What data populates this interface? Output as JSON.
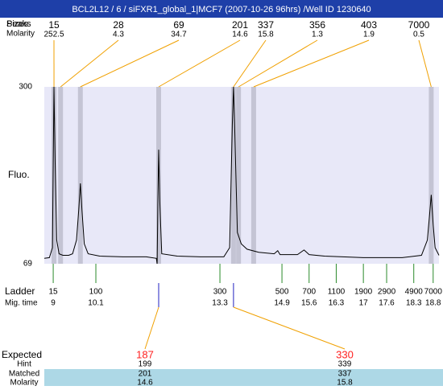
{
  "chart_data": {
    "type": "line",
    "title": "BCL2L12 / 6 / siFXR1_global_1|MCF7 (2007-10-26 96hrs) /Well ID 1230640",
    "ylabel": "Fluo.",
    "peaks_labels": [
      "Peaks",
      "Sizes"
    ],
    "molarity_label": "Molarity",
    "peaks": [
      {
        "size": 15,
        "molarity": 252.5,
        "time": 9.02
      },
      {
        "size": 28,
        "molarity": 4.3,
        "time": 9.19
      },
      {
        "size": 69,
        "molarity": 34.7,
        "time": 9.7
      },
      {
        "size": 201,
        "molarity": 14.6,
        "time": 11.72
      },
      {
        "size": 337,
        "molarity": 15.8,
        "time": 13.65
      },
      {
        "size": 356,
        "molarity": 1.3,
        "time": 13.78
      },
      {
        "size": 403,
        "molarity": 1.9,
        "time": 14.17
      },
      {
        "size": 7000,
        "molarity": 0.5,
        "time": 18.75
      }
    ],
    "x": [
      8.77,
      8.9,
      8.98,
      9.0,
      9.02,
      9.05,
      9.09,
      9.15,
      9.25,
      9.4,
      9.5,
      9.6,
      9.66,
      9.7,
      9.74,
      9.8,
      9.9,
      10.2,
      10.8,
      11.4,
      11.66,
      11.68,
      11.7,
      11.72,
      11.75,
      11.8,
      12.2,
      12.8,
      13.4,
      13.55,
      13.62,
      13.65,
      13.68,
      13.75,
      13.85,
      14.0,
      14.3,
      14.7,
      14.79,
      14.85,
      15.3,
      15.47,
      15.6,
      16.0,
      17.0,
      18.0,
      18.5,
      18.65,
      18.72,
      18.75,
      18.8,
      18.85,
      18.95
    ],
    "values": [
      76,
      77,
      90,
      200,
      300,
      200,
      100,
      82,
      80,
      80,
      82,
      100,
      140,
      174,
      140,
      95,
      82,
      79,
      78,
      78,
      76,
      69,
      150,
      218,
      150,
      82,
      79,
      78,
      78,
      90,
      250,
      300,
      250,
      110,
      95,
      88,
      84,
      82,
      86,
      81,
      81,
      87,
      81,
      79,
      77,
      77,
      80,
      100,
      140,
      159,
      120,
      90,
      80
    ],
    "color": "#000000",
    "xlim": [
      8.77,
      18.95
    ],
    "ylim": [
      69,
      300
    ],
    "yticks": [
      69,
      300
    ],
    "ladder_label": "Ladder",
    "time_label": "Mig. time",
    "ladder": [
      {
        "size": 15,
        "time": 9
      },
      {
        "size": 100,
        "time": 10.1
      },
      {
        "size": 300,
        "time": 13.3
      },
      {
        "size": 500,
        "time": 14.9
      },
      {
        "size": 700,
        "time": 15.6
      },
      {
        "size": 1100,
        "time": 16.3
      },
      {
        "size": 1900,
        "time": 17
      },
      {
        "size": 2900,
        "time": 17.6
      },
      {
        "size": 4900,
        "time": 18.3
      },
      {
        "size": 7000,
        "time": 18.8
      }
    ],
    "expected_labels": [
      "Expected",
      "Hint",
      "Matched",
      "Molarity"
    ],
    "expected": [
      {
        "expected": 187,
        "hint": 199,
        "matched": 201,
        "molarity": 14.6
      },
      {
        "expected": 330,
        "hint": 339,
        "matched": 337,
        "molarity": 15.8
      }
    ]
  }
}
